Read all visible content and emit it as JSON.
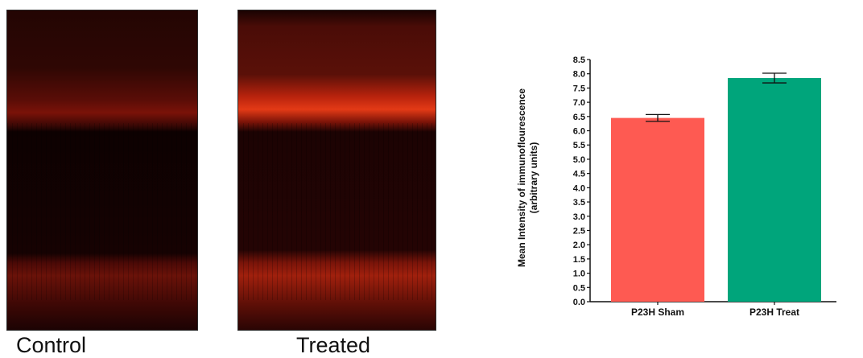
{
  "panels": [
    {
      "label": "Control"
    },
    {
      "label": "Treated"
    }
  ],
  "chart_data": {
    "type": "bar",
    "categories": [
      "P23H Sham",
      "P23H Treat"
    ],
    "values": [
      6.45,
      7.85
    ],
    "errors": [
      0.12,
      0.17
    ],
    "colors": [
      "#fe5a52",
      "#00a57b"
    ],
    "title": "",
    "xlabel": "",
    "ylabel": [
      "Mean Intensity of immunoflourescence",
      "(arbitrary units)"
    ],
    "ylim": [
      0,
      8.5
    ],
    "yticks": [
      "0.0",
      "0.5",
      "1.0",
      "1.5",
      "2.0",
      "2.5",
      "3.0",
      "3.5",
      "4.0",
      "4.5",
      "5.0",
      "5.5",
      "6.0",
      "6.5",
      "7.0",
      "7.5",
      "8.0",
      "8.5"
    ],
    "grid": false,
    "legend": "none"
  }
}
